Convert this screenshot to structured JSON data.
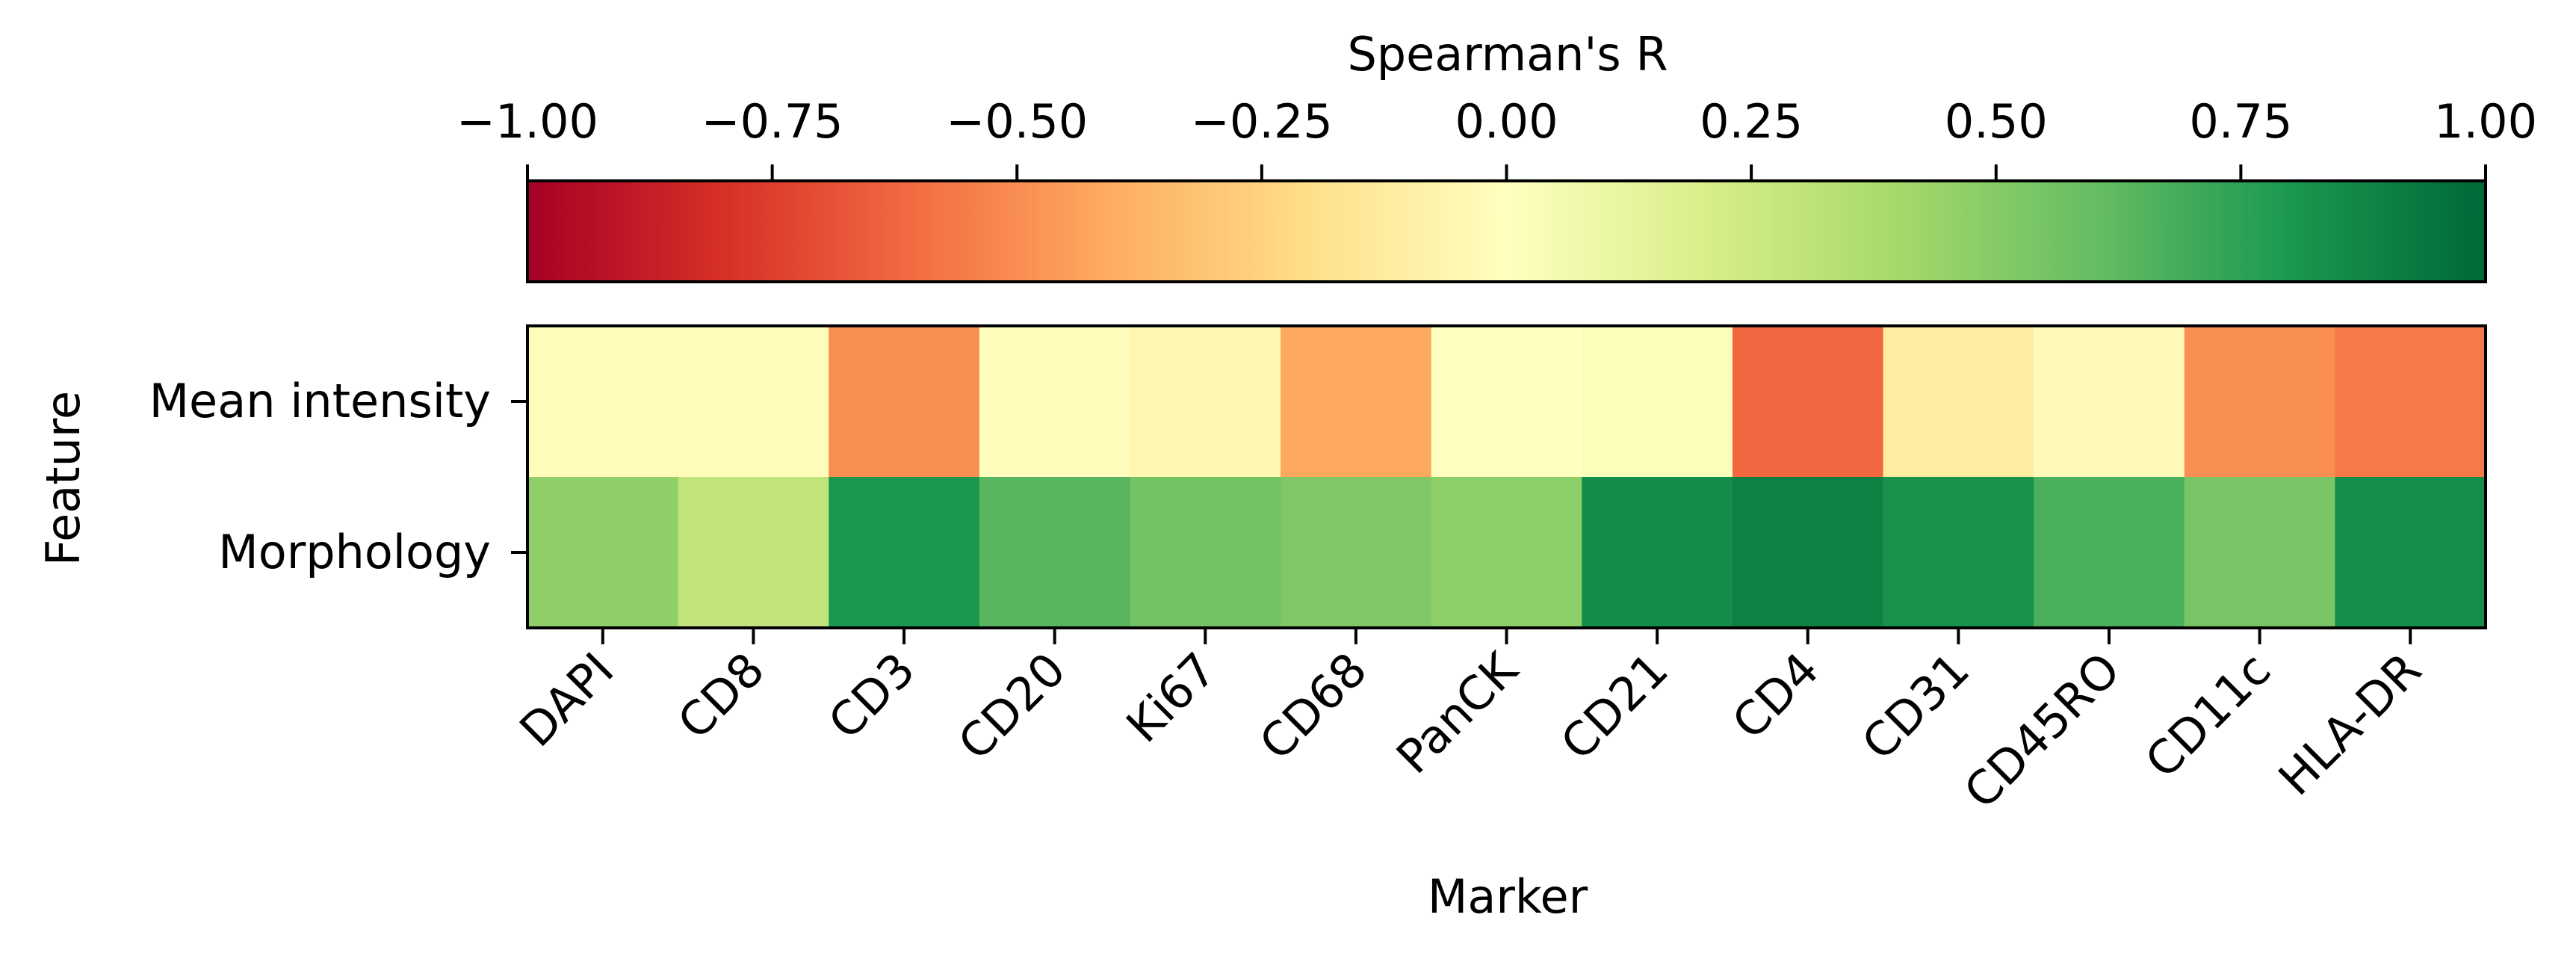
{
  "chart_data": {
    "type": "heatmap",
    "colorbar": {
      "label": "Spearman's R",
      "range": [
        -1.0,
        1.0
      ],
      "ticks": [
        -1.0,
        -0.75,
        -0.5,
        -0.25,
        0.0,
        0.25,
        0.5,
        0.75,
        1.0
      ],
      "tick_labels": [
        "−1.00",
        "−0.75",
        "−0.50",
        "−0.25",
        "0.00",
        "0.25",
        "0.50",
        "0.75",
        "1.00"
      ],
      "colormap": "RdYlGn",
      "placement": "top"
    },
    "xlabel": "Marker",
    "ylabel": "Feature",
    "x_categories": [
      "DAPI",
      "CD8",
      "CD3",
      "CD20",
      "Ki67",
      "CD68",
      "PanCK",
      "CD21",
      "CD4",
      "CD31",
      "CD45RO",
      "CD11c",
      "HLA-DR"
    ],
    "y_categories": [
      "Mean intensity",
      "Morphology"
    ],
    "values": [
      [
        -0.02,
        -0.02,
        -0.5,
        -0.01,
        -0.05,
        -0.42,
        0.0,
        0.02,
        -0.62,
        -0.12,
        -0.03,
        -0.5,
        -0.56
      ],
      [
        0.47,
        0.3,
        0.8,
        0.64,
        0.56,
        0.52,
        0.48,
        0.85,
        0.89,
        0.82,
        0.67,
        0.54,
        0.84
      ]
    ]
  }
}
